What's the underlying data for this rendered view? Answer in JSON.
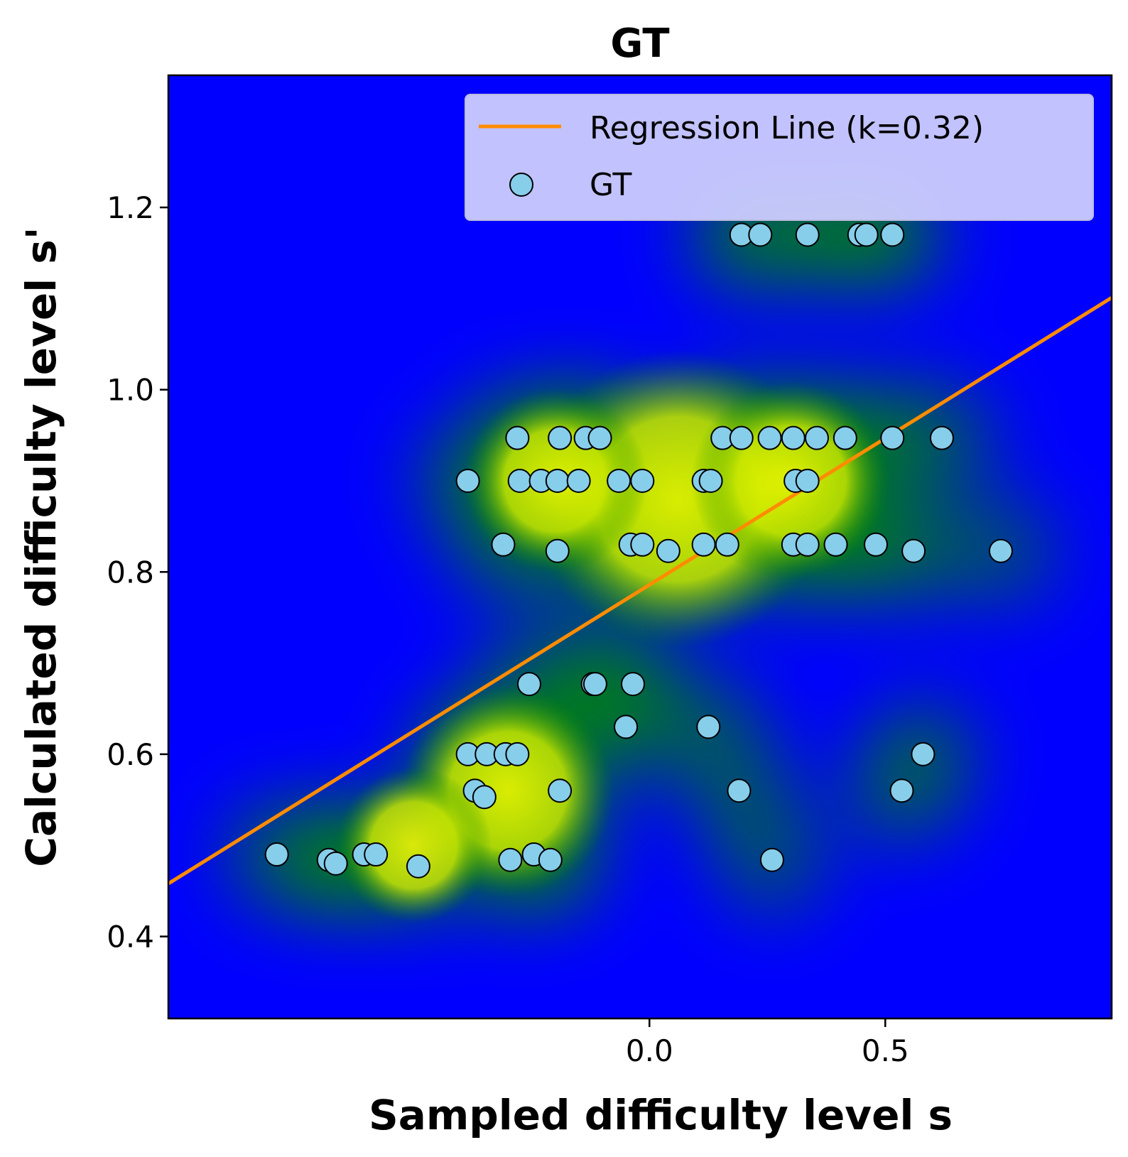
{
  "chart_data": {
    "type": "scatter",
    "title": "GT",
    "xlabel": "Sampled difficulty level s",
    "ylabel": "Calculated difficulty level s'",
    "xlim": [
      -1.02,
      0.98
    ],
    "ylim": [
      0.31,
      1.345
    ],
    "xticks": [
      0.0,
      0.5
    ],
    "xtick_labels": [
      "0.0",
      "0.5"
    ],
    "yticks": [
      0.4,
      0.6,
      0.8,
      1.0,
      1.2
    ],
    "ytick_labels": [
      "0.4",
      "0.6",
      "0.8",
      "1.0",
      "1.2"
    ],
    "grid": false,
    "legend_position": "top-right",
    "background": "density heatmap (blue-green-yellow)",
    "colors": {
      "points": "#87ceeb",
      "point_edge": "#000000",
      "regression": "#ff8c00",
      "legend_bg": "#ccccff"
    },
    "series": [
      {
        "name": "Regression Line (k=0.32)",
        "kind": "line",
        "x": [
          -1.02,
          0.98
        ],
        "y": [
          0.458,
          1.101
        ]
      },
      {
        "name": "GT",
        "kind": "scatter",
        "points": [
          [
            -0.79,
            0.49
          ],
          [
            -0.68,
            0.484
          ],
          [
            -0.665,
            0.48
          ],
          [
            -0.605,
            0.49
          ],
          [
            -0.58,
            0.49
          ],
          [
            -0.49,
            0.477
          ],
          [
            -0.295,
            0.484
          ],
          [
            -0.245,
            0.49
          ],
          [
            -0.21,
            0.484
          ],
          [
            -0.385,
            0.6
          ],
          [
            -0.345,
            0.6
          ],
          [
            -0.305,
            0.6
          ],
          [
            -0.28,
            0.6
          ],
          [
            -0.37,
            0.56
          ],
          [
            -0.35,
            0.553
          ],
          [
            -0.19,
            0.56
          ],
          [
            -0.255,
            0.677
          ],
          [
            -0.12,
            0.677
          ],
          [
            -0.115,
            0.677
          ],
          [
            -0.035,
            0.677
          ],
          [
            -0.05,
            0.63
          ],
          [
            0.125,
            0.63
          ],
          [
            0.19,
            0.56
          ],
          [
            0.26,
            0.484
          ],
          [
            0.58,
            0.6
          ],
          [
            0.535,
            0.56
          ],
          [
            -0.31,
            0.83
          ],
          [
            -0.195,
            0.823
          ],
          [
            -0.04,
            0.83
          ],
          [
            -0.015,
            0.83
          ],
          [
            0.04,
            0.823
          ],
          [
            0.115,
            0.83
          ],
          [
            0.165,
            0.83
          ],
          [
            0.305,
            0.83
          ],
          [
            0.335,
            0.83
          ],
          [
            0.395,
            0.83
          ],
          [
            0.48,
            0.83
          ],
          [
            0.56,
            0.823
          ],
          [
            0.745,
            0.823
          ],
          [
            -0.385,
            0.9
          ],
          [
            -0.275,
            0.9
          ],
          [
            -0.23,
            0.9
          ],
          [
            -0.195,
            0.9
          ],
          [
            -0.15,
            0.9
          ],
          [
            -0.065,
            0.9
          ],
          [
            -0.015,
            0.9
          ],
          [
            0.115,
            0.9
          ],
          [
            0.13,
            0.9
          ],
          [
            0.31,
            0.9
          ],
          [
            0.335,
            0.9
          ],
          [
            -0.28,
            0.947
          ],
          [
            -0.19,
            0.947
          ],
          [
            -0.135,
            0.947
          ],
          [
            -0.105,
            0.947
          ],
          [
            0.155,
            0.947
          ],
          [
            0.195,
            0.947
          ],
          [
            0.255,
            0.947
          ],
          [
            0.305,
            0.947
          ],
          [
            0.355,
            0.947
          ],
          [
            0.415,
            0.947
          ],
          [
            0.515,
            0.947
          ],
          [
            0.62,
            0.947
          ],
          [
            0.195,
            1.17
          ],
          [
            0.235,
            1.17
          ],
          [
            0.335,
            1.17
          ],
          [
            0.445,
            1.17
          ],
          [
            0.46,
            1.17
          ],
          [
            0.515,
            1.17
          ]
        ]
      }
    ]
  }
}
